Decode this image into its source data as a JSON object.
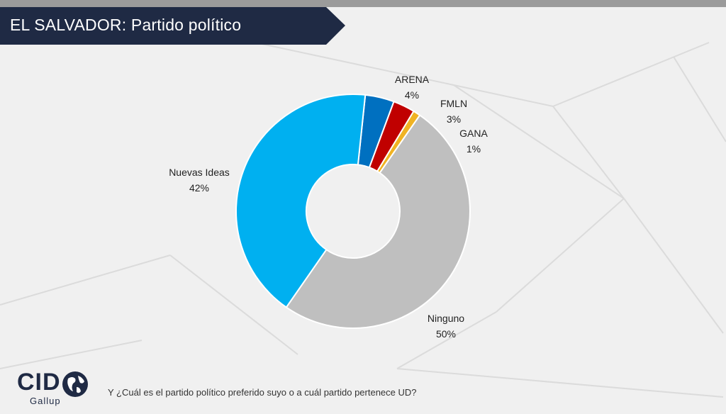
{
  "header": {
    "title": "EL SALVADOR: Partido político"
  },
  "footer": {
    "question": "Y ¿Cuál es el partido político preferido suyo o a cuál partido pertenece UD?",
    "logo_text": "CID",
    "logo_sub": "Gallup"
  },
  "colors": {
    "banner": "#1f2a44",
    "top_bar": "#9b9b9b",
    "background": "#f0f0f0"
  },
  "chart_data": {
    "type": "pie",
    "donut": true,
    "title": "",
    "slices": [
      {
        "name": "ARENA",
        "value": 4,
        "label": "4%",
        "color": "#0070c0"
      },
      {
        "name": "FMLN",
        "value": 3,
        "label": "3%",
        "color": "#c00000"
      },
      {
        "name": "GANA",
        "value": 1,
        "label": "1%",
        "color": "#f0b323"
      },
      {
        "name": "Ninguno",
        "value": 50,
        "label": "50%",
        "color": "#bfbfbf"
      },
      {
        "name": "Nuevas Ideas",
        "value": 42,
        "label": "42%",
        "color": "#00b0f0"
      }
    ]
  }
}
